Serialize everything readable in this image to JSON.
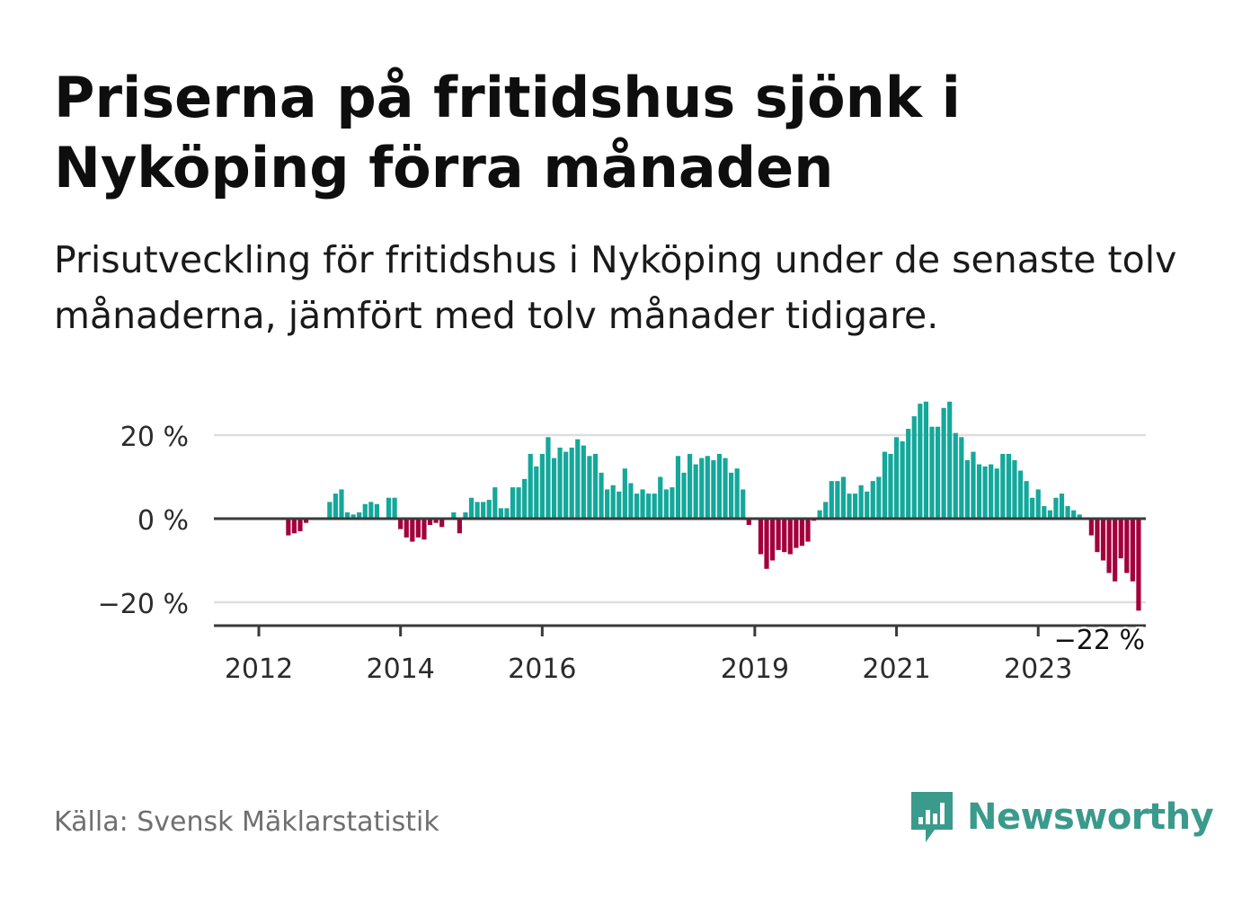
{
  "header": {
    "title": "Priserna på fritidshus sjönk i Nyköping förra månaden",
    "subtitle": "Prisutveckling för fritidshus i Nyköping under de senaste tolv månaderna, jämfört med tolv månader tidigare."
  },
  "footer": {
    "source": "Källa: Svensk Mäklarstatistik",
    "brand": "Newsworthy"
  },
  "colors": {
    "positive": "#14a89b",
    "negative": "#a3003b",
    "axis": "#3a3a3a",
    "grid": "#dedede",
    "text": "#2b2b2b",
    "brand": "#3a9a8c"
  },
  "chart_data": {
    "type": "bar",
    "title": "",
    "xlabel": "",
    "ylabel": "",
    "ylim": [
      -25,
      30
    ],
    "yticks": [
      {
        "value": 20,
        "label": "20 %"
      },
      {
        "value": 0,
        "label": "0 %"
      },
      {
        "value": -20,
        "label": "−20 %"
      }
    ],
    "xticks": [
      {
        "index": 0,
        "label": "2012"
      },
      {
        "index": 24,
        "label": "2014"
      },
      {
        "index": 48,
        "label": "2016"
      },
      {
        "index": 84,
        "label": "2019"
      },
      {
        "index": 108,
        "label": "2021"
      },
      {
        "index": 132,
        "label": "2023"
      }
    ],
    "grid": true,
    "end_label": "−22 %",
    "start": "2011-10",
    "frequency": "monthly",
    "values": [
      0,
      0,
      0,
      0,
      0,
      -4,
      -3.5,
      -3,
      -1,
      0,
      0,
      0,
      4,
      6,
      7,
      1.5,
      1,
      1.5,
      3.5,
      4,
      3.5,
      0,
      5,
      5,
      -2.5,
      -4.5,
      -5.5,
      -4.5,
      -5,
      -1.5,
      -1,
      -2,
      0,
      1.5,
      -3.5,
      1.5,
      5,
      4,
      4,
      4.5,
      7.5,
      2.5,
      2.5,
      7.5,
      7.5,
      9.5,
      15.5,
      12.5,
      15.5,
      19.5,
      14.5,
      17,
      16,
      17,
      19,
      17.5,
      15,
      15.5,
      11,
      7,
      8,
      6.5,
      12,
      8.5,
      6,
      7,
      6,
      6,
      10,
      7,
      7.5,
      15,
      11,
      15.5,
      13,
      14.5,
      15,
      14,
      15.5,
      14.5,
      11,
      12,
      7,
      -1.5,
      0,
      -8.5,
      -12,
      -10,
      -7.5,
      -8,
      -8.5,
      -7,
      -6.5,
      -5.5,
      -0.5,
      2,
      4,
      9,
      9,
      10,
      6,
      6,
      8,
      6.5,
      9,
      10,
      16,
      15.5,
      19.5,
      18.5,
      21.5,
      24.5,
      27.5,
      28,
      22,
      22,
      26.5,
      28,
      20.5,
      19.5,
      14,
      16,
      13,
      12.5,
      13,
      12,
      15.5,
      15.5,
      14,
      11.5,
      9,
      5,
      7,
      3,
      2,
      5,
      6,
      3,
      2,
      1,
      0,
      -4,
      -8,
      -10,
      -13,
      -15,
      -9.5,
      -13,
      -15,
      -22
    ]
  }
}
